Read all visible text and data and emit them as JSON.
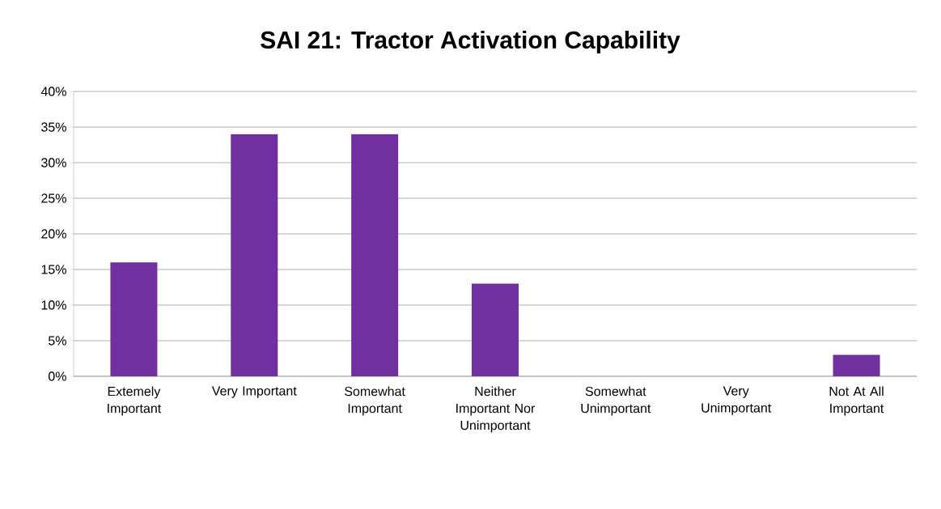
{
  "chart_data": {
    "type": "bar",
    "title": "SAI 21: Tractor Activation Capability",
    "categories": [
      "Extemely Important",
      "Very Important",
      "Somewhat Important",
      "Neither Important Nor Unimportant",
      "Somewhat Unimportant",
      "Very Unimportant",
      "Not At All Important"
    ],
    "values": [
      16,
      34,
      34,
      13,
      0,
      0,
      3
    ],
    "color": "#7030a0",
    "ylim": [
      0,
      40
    ],
    "yticks": [
      {
        "value": 0,
        "label": "0%"
      },
      {
        "value": 5,
        "label": "5%"
      },
      {
        "value": 10,
        "label": "10%"
      },
      {
        "value": 15,
        "label": "15%"
      },
      {
        "value": 20,
        "label": "20%"
      },
      {
        "value": 25,
        "label": "25%"
      },
      {
        "value": 30,
        "label": "30%"
      },
      {
        "value": 35,
        "label": "35%"
      },
      {
        "value": 40,
        "label": "40%"
      }
    ],
    "grid": "y"
  }
}
